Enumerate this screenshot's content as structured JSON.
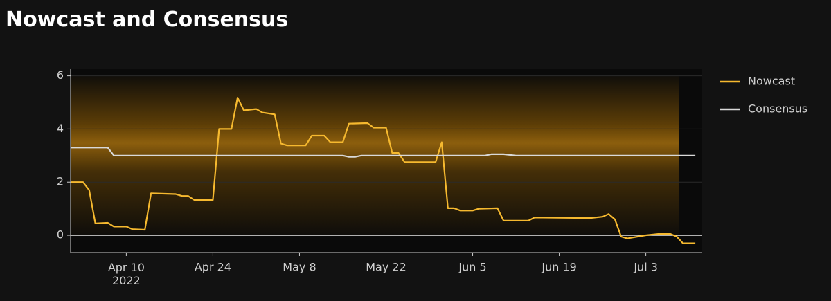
{
  "chart_data": {
    "type": "line",
    "title": "Nowcast and Consensus",
    "xlim": [
      "2022-04-01",
      "2022-07-12"
    ],
    "xticks": [
      {
        "value": "2022-04-10",
        "label": "Apr 10\n2022"
      },
      {
        "value": "2022-04-24",
        "label": "Apr 24"
      },
      {
        "value": "2022-05-08",
        "label": "May 8"
      },
      {
        "value": "2022-05-22",
        "label": "May 22"
      },
      {
        "value": "2022-06-05",
        "label": "Jun 5"
      },
      {
        "value": "2022-06-19",
        "label": "Jun 19"
      },
      {
        "value": "2022-07-03",
        "label": "Jul 3"
      }
    ],
    "ylim": [
      -0.65,
      6.25
    ],
    "yticks": [
      0,
      2,
      4,
      6
    ],
    "grid": true,
    "legend": "right",
    "series": [
      {
        "name": "Nowcast",
        "color": "#f6b92f",
        "x": [
          "2022-04-01",
          "2022-04-03",
          "2022-04-04",
          "2022-04-05",
          "2022-04-07",
          "2022-04-08",
          "2022-04-10",
          "2022-04-11",
          "2022-04-13",
          "2022-04-14",
          "2022-04-18",
          "2022-04-19",
          "2022-04-20",
          "2022-04-21",
          "2022-04-24",
          "2022-04-25",
          "2022-04-27",
          "2022-04-28",
          "2022-04-29",
          "2022-05-01",
          "2022-05-02",
          "2022-05-04",
          "2022-05-05",
          "2022-05-06",
          "2022-05-09",
          "2022-05-10",
          "2022-05-12",
          "2022-05-13",
          "2022-05-15",
          "2022-05-16",
          "2022-05-19",
          "2022-05-20",
          "2022-05-22",
          "2022-05-23",
          "2022-05-24",
          "2022-05-25",
          "2022-05-30",
          "2022-05-31",
          "2022-06-01",
          "2022-06-02",
          "2022-06-03",
          "2022-06-05",
          "2022-06-06",
          "2022-06-09",
          "2022-06-10",
          "2022-06-14",
          "2022-06-15",
          "2022-06-24",
          "2022-06-26",
          "2022-06-27",
          "2022-06-28",
          "2022-06-29",
          "2022-06-30",
          "2022-07-03",
          "2022-07-05",
          "2022-07-07",
          "2022-07-08",
          "2022-07-09",
          "2022-07-11"
        ],
        "values": [
          2.0,
          2.0,
          1.7,
          0.45,
          0.47,
          0.33,
          0.33,
          0.23,
          0.21,
          1.58,
          1.55,
          1.48,
          1.48,
          1.33,
          1.33,
          4.0,
          4.0,
          5.18,
          4.7,
          4.75,
          4.62,
          4.55,
          3.45,
          3.38,
          3.38,
          3.75,
          3.75,
          3.5,
          3.5,
          4.2,
          4.22,
          4.05,
          4.05,
          3.1,
          3.1,
          2.75,
          2.75,
          3.5,
          1.02,
          1.02,
          0.93,
          0.93,
          1.0,
          1.02,
          0.55,
          0.55,
          0.67,
          0.65,
          0.7,
          0.8,
          0.6,
          -0.05,
          -0.12,
          0.0,
          0.05,
          0.05,
          -0.05,
          -0.3,
          -0.3
        ]
      },
      {
        "name": "Consensus",
        "color": "#d9d9d9",
        "x": [
          "2022-04-01",
          "2022-04-07",
          "2022-04-08",
          "2022-05-15",
          "2022-05-16",
          "2022-05-17",
          "2022-05-18",
          "2022-06-07",
          "2022-06-08",
          "2022-06-10",
          "2022-06-12",
          "2022-07-11"
        ],
        "values": [
          3.3,
          3.3,
          3.0,
          3.0,
          2.95,
          2.95,
          3.0,
          3.0,
          3.05,
          3.05,
          3.0,
          3.0
        ]
      }
    ]
  }
}
